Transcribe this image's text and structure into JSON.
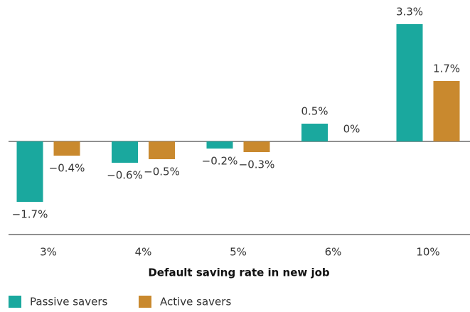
{
  "chart_data": {
    "type": "bar",
    "x_label": "Default saving rate in new job",
    "categories": [
      "3%",
      "4%",
      "5%",
      "6%",
      "10%"
    ],
    "series": [
      {
        "name": "Passive savers",
        "color": "#1aa89e",
        "values": [
          -1.7,
          -0.6,
          -0.2,
          0.5,
          3.3
        ],
        "value_labels": [
          "−1.7%",
          "−0.6%",
          "−0.2%",
          "0.5%",
          "3.3%"
        ]
      },
      {
        "name": "Active savers",
        "color": "#c9892e",
        "values": [
          -0.4,
          -0.5,
          -0.3,
          0,
          1.7
        ],
        "value_labels": [
          "−0.4%",
          "−0.5%",
          "−0.3%",
          "0%",
          "1.7%"
        ]
      }
    ],
    "legend": "bottom-left"
  }
}
